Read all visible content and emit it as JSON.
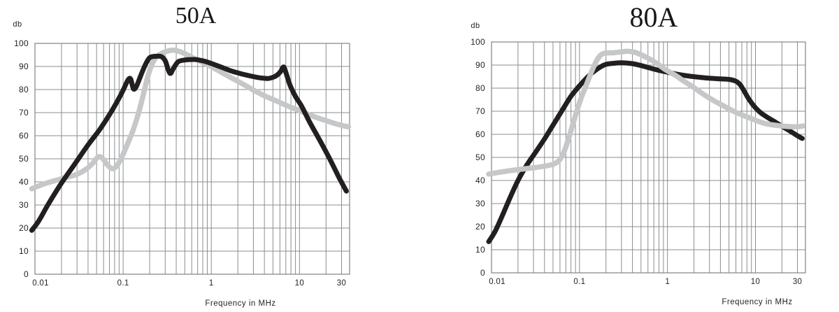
{
  "page": {
    "background": "#ffffff",
    "text_color": "#231f20",
    "grid_color": "#8b8d90"
  },
  "chart_data": [
    {
      "type": "line",
      "title": "50A",
      "ylabel": "db",
      "xlabel": "Frequency in MHz",
      "x_scale": "log",
      "xlim": [
        0.01,
        37
      ],
      "ylim": [
        0,
        100
      ],
      "grid": true,
      "legend": "none",
      "x_ticks": [
        {
          "value": 0.01,
          "label": "0.01"
        },
        {
          "value": 0.1,
          "label": "0.1"
        },
        {
          "value": 1,
          "label": "1"
        },
        {
          "value": 10,
          "label": "10"
        },
        {
          "value": 30,
          "label": "30"
        }
      ],
      "y_ticks": [
        {
          "value": 0,
          "label": "0"
        },
        {
          "value": 10,
          "label": "10"
        },
        {
          "value": 20,
          "label": "20"
        },
        {
          "value": 30,
          "label": "30"
        },
        {
          "value": 40,
          "label": "40"
        },
        {
          "value": 50,
          "label": "50"
        },
        {
          "value": 60,
          "label": "60"
        },
        {
          "value": 70,
          "label": "70"
        },
        {
          "value": 80,
          "label": "80"
        },
        {
          "value": 90,
          "label": "90"
        },
        {
          "value": 100,
          "label": "100"
        }
      ],
      "series": [
        {
          "name": "light-gray-curve",
          "color": "#c6c7c9",
          "stroke_width": 7.5,
          "points": [
            [
              0.0092,
              37
            ],
            [
              0.012,
              38.8
            ],
            [
              0.016,
              40.3
            ],
            [
              0.022,
              41.8
            ],
            [
              0.03,
              43.3
            ],
            [
              0.038,
              45.5
            ],
            [
              0.045,
              48
            ],
            [
              0.052,
              50.8
            ],
            [
              0.058,
              50.3
            ],
            [
              0.066,
              47.5
            ],
            [
              0.075,
              45.7
            ],
            [
              0.085,
              47
            ],
            [
              0.1,
              52
            ],
            [
              0.115,
              57.5
            ],
            [
              0.13,
              62.5
            ],
            [
              0.15,
              70
            ],
            [
              0.17,
              78
            ],
            [
              0.19,
              85.5
            ],
            [
              0.21,
              90.5
            ],
            [
              0.23,
              93.3
            ],
            [
              0.26,
              95.2
            ],
            [
              0.3,
              96.3
            ],
            [
              0.35,
              97
            ],
            [
              0.4,
              96.9
            ],
            [
              0.47,
              96
            ],
            [
              0.55,
              94.8
            ],
            [
              0.65,
              93.3
            ],
            [
              0.8,
              91.7
            ],
            [
              1.0,
              89.9
            ],
            [
              1.3,
              87.5
            ],
            [
              1.7,
              85
            ],
            [
              2.2,
              82.7
            ],
            [
              3,
              79.8
            ],
            [
              4,
              77.3
            ],
            [
              5,
              75.7
            ],
            [
              6.5,
              73.8
            ],
            [
              8,
              72.3
            ],
            [
              10,
              70.9
            ],
            [
              13,
              69
            ],
            [
              17,
              67.4
            ],
            [
              22,
              66
            ],
            [
              28,
              64.8
            ],
            [
              34,
              64
            ],
            [
              36,
              63.9
            ]
          ]
        },
        {
          "name": "dark-curve",
          "color": "#231f20",
          "stroke_width": 7,
          "points": [
            [
              0.0092,
              19
            ],
            [
              0.011,
              23
            ],
            [
              0.014,
              30
            ],
            [
              0.02,
              39.5
            ],
            [
              0.028,
              47.5
            ],
            [
              0.04,
              56
            ],
            [
              0.055,
              63
            ],
            [
              0.075,
              71
            ],
            [
              0.095,
              78
            ],
            [
              0.108,
              82.5
            ],
            [
              0.115,
              84.5
            ],
            [
              0.122,
              84.5
            ],
            [
              0.131,
              80.3
            ],
            [
              0.142,
              81.5
            ],
            [
              0.16,
              86.5
            ],
            [
              0.18,
              91
            ],
            [
              0.2,
              93.8
            ],
            [
              0.23,
              94.4
            ],
            [
              0.27,
              94.3
            ],
            [
              0.3,
              92.5
            ],
            [
              0.325,
              88.5
            ],
            [
              0.345,
              87
            ],
            [
              0.37,
              89
            ],
            [
              0.42,
              92
            ],
            [
              0.5,
              92.8
            ],
            [
              0.6,
              93
            ],
            [
              0.7,
              92.9
            ],
            [
              0.85,
              92.2
            ],
            [
              1.0,
              91.3
            ],
            [
              1.3,
              89.7
            ],
            [
              1.7,
              88
            ],
            [
              2.2,
              86.8
            ],
            [
              3,
              85.6
            ],
            [
              3.7,
              85
            ],
            [
              4.4,
              84.8
            ],
            [
              5,
              85.3
            ],
            [
              5.6,
              86.3
            ],
            [
              6.1,
              87.8
            ],
            [
              6.6,
              89.8
            ],
            [
              7.0,
              87.5
            ],
            [
              7.8,
              82
            ],
            [
              9,
              77
            ],
            [
              10.5,
              73
            ],
            [
              13,
              66
            ],
            [
              17,
              58
            ],
            [
              22,
              50
            ],
            [
              28,
              42
            ],
            [
              34,
              36
            ]
          ]
        }
      ]
    },
    {
      "type": "line",
      "title": "80A",
      "ylabel": "db",
      "xlabel": "Frequency in MHz",
      "x_scale": "log",
      "xlim": [
        0.01,
        37
      ],
      "ylim": [
        0,
        100
      ],
      "grid": true,
      "legend": "none",
      "x_ticks": [
        {
          "value": 0.01,
          "label": "0.01"
        },
        {
          "value": 0.1,
          "label": "0.1"
        },
        {
          "value": 1,
          "label": "1"
        },
        {
          "value": 10,
          "label": "10"
        },
        {
          "value": 30,
          "label": "30"
        }
      ],
      "y_ticks": [
        {
          "value": 0,
          "label": "0"
        },
        {
          "value": 10,
          "label": "10"
        },
        {
          "value": 20,
          "label": "20"
        },
        {
          "value": 30,
          "label": "30"
        },
        {
          "value": 40,
          "label": "40"
        },
        {
          "value": 50,
          "label": "50"
        },
        {
          "value": 60,
          "label": "60"
        },
        {
          "value": 70,
          "label": "70"
        },
        {
          "value": 80,
          "label": "80"
        },
        {
          "value": 90,
          "label": "90"
        },
        {
          "value": 100,
          "label": "100"
        }
      ],
      "series": [
        {
          "name": "dark-curve",
          "color": "#231f20",
          "stroke_width": 7,
          "points": [
            [
              0.0093,
              13.5
            ],
            [
              0.011,
              18
            ],
            [
              0.013,
              24
            ],
            [
              0.016,
              32
            ],
            [
              0.02,
              40
            ],
            [
              0.025,
              46.5
            ],
            [
              0.032,
              52.5
            ],
            [
              0.04,
              58
            ],
            [
              0.05,
              64
            ],
            [
              0.065,
              71
            ],
            [
              0.08,
              76.5
            ],
            [
              0.1,
              81
            ],
            [
              0.12,
              84.3
            ],
            [
              0.14,
              86.7
            ],
            [
              0.17,
              89
            ],
            [
              0.2,
              90.3
            ],
            [
              0.25,
              90.8
            ],
            [
              0.3,
              91
            ],
            [
              0.4,
              90.6
            ],
            [
              0.5,
              89.8
            ],
            [
              0.65,
              88.6
            ],
            [
              0.8,
              87.7
            ],
            [
              1.0,
              86.9
            ],
            [
              1.3,
              86
            ],
            [
              1.7,
              85.3
            ],
            [
              2.2,
              84.8
            ],
            [
              3,
              84.3
            ],
            [
              4,
              84
            ],
            [
              5,
              83.8
            ],
            [
              6,
              83
            ],
            [
              6.7,
              81.5
            ],
            [
              7.5,
              78.5
            ],
            [
              8.5,
              75
            ],
            [
              10,
              71.5
            ],
            [
              11.5,
              69.3
            ],
            [
              13.5,
              67.5
            ],
            [
              16,
              65.8
            ],
            [
              20,
              63.5
            ],
            [
              25,
              61.3
            ],
            [
              30,
              59.4
            ],
            [
              34,
              58.2
            ]
          ]
        },
        {
          "name": "light-gray-curve",
          "color": "#c6c7c9",
          "stroke_width": 7.5,
          "points": [
            [
              0.0093,
              42.8
            ],
            [
              0.012,
              43.5
            ],
            [
              0.016,
              44.2
            ],
            [
              0.022,
              44.9
            ],
            [
              0.03,
              45.5
            ],
            [
              0.04,
              46.2
            ],
            [
              0.05,
              47
            ],
            [
              0.058,
              48.5
            ],
            [
              0.066,
              52
            ],
            [
              0.075,
              58
            ],
            [
              0.085,
              65
            ],
            [
              0.095,
              71
            ],
            [
              0.105,
              76
            ],
            [
              0.12,
              81.5
            ],
            [
              0.135,
              86.5
            ],
            [
              0.15,
              90.5
            ],
            [
              0.165,
              93.3
            ],
            [
              0.18,
              94.7
            ],
            [
              0.2,
              95.2
            ],
            [
              0.25,
              95.4
            ],
            [
              0.3,
              95.7
            ],
            [
              0.35,
              96
            ],
            [
              0.42,
              95.6
            ],
            [
              0.5,
              94.5
            ],
            [
              0.6,
              93
            ],
            [
              0.75,
              90.8
            ],
            [
              0.95,
              88
            ],
            [
              1.2,
              85.8
            ],
            [
              1.5,
              83.3
            ],
            [
              2,
              80.2
            ],
            [
              2.7,
              76.8
            ],
            [
              3.5,
              74.2
            ],
            [
              4.5,
              72
            ],
            [
              6,
              69.5
            ],
            [
              7.5,
              68
            ],
            [
              9,
              66.8
            ],
            [
              11,
              65.5
            ],
            [
              13.5,
              64.5
            ],
            [
              17,
              63.9
            ],
            [
              21,
              63.5
            ],
            [
              26,
              63.3
            ],
            [
              31,
              63.3
            ],
            [
              34.5,
              63.6
            ]
          ]
        }
      ]
    }
  ]
}
